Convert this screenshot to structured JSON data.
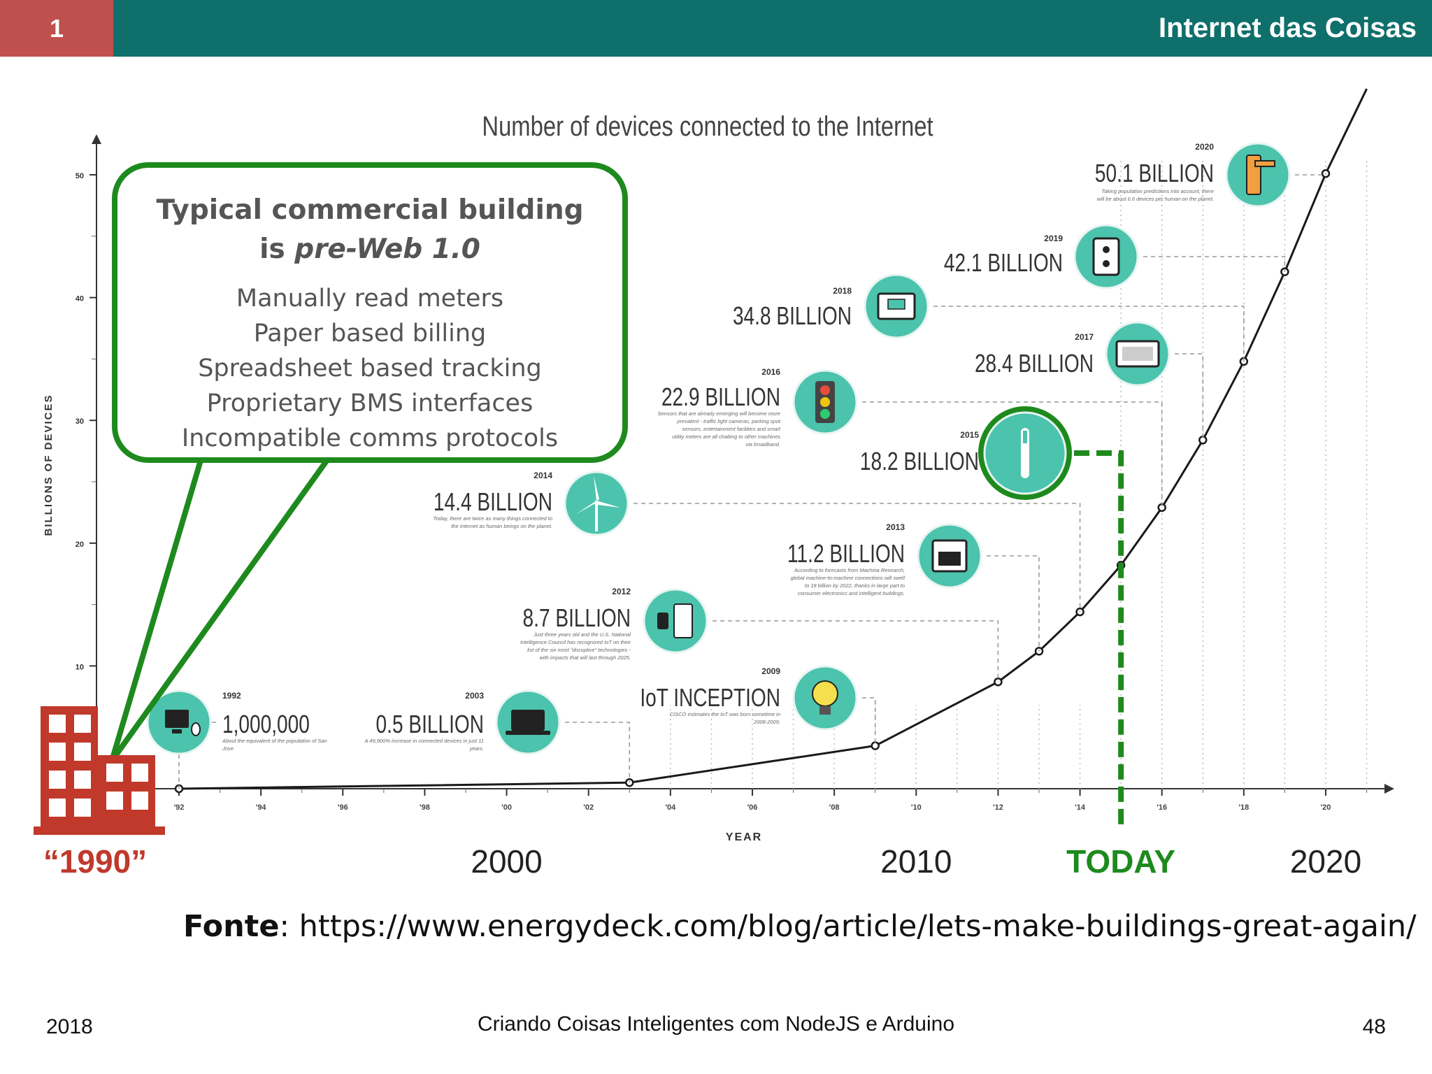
{
  "header": {
    "slide_number": "1",
    "title": "Internet das Coisas"
  },
  "callout": {
    "title": "Typical commercial building",
    "subtitle_prefix": "is ",
    "subtitle_em": "pre-Web 1.0",
    "items": [
      "Manually read meters",
      "Paper based billing",
      "Spreadsheet based tracking",
      "Proprietary BMS interfaces",
      "Incompatible comms protocols"
    ]
  },
  "source": {
    "label": "Fonte",
    "url": "https://www.energydeck.com/blog/article/lets-make-buildings-great-again/"
  },
  "footer": {
    "year": "2018",
    "course": "Criando Coisas Inteligentes com NodeJS e Arduino",
    "page": "48"
  },
  "colors": {
    "teal_bar": "#0f6f6b",
    "red_box": "#c0504d",
    "green": "#1e8a1e",
    "icon_teal": "#4cc3ac",
    "building_red": "#c0392b"
  },
  "chart_data": {
    "type": "line",
    "title": "Number of devices connected to the Internet",
    "xlabel": "YEAR",
    "ylabel": "BILLIONS OF DEVICES",
    "xlim": [
      1991,
      2021
    ],
    "ylim": [
      0,
      52
    ],
    "y_ticks": [
      "10",
      "20",
      "30",
      "40",
      "50"
    ],
    "x_ticks": [
      "'92",
      "'94",
      "'96",
      "'98",
      "'00",
      "'02",
      "'04",
      "'06",
      "'08",
      "'10",
      "'12",
      "'14",
      "'16",
      "'18",
      "'20"
    ],
    "x_tick_values": [
      1992,
      1994,
      1996,
      1998,
      2000,
      2002,
      2004,
      2006,
      2008,
      2010,
      2012,
      2014,
      2016,
      2018,
      2020
    ],
    "points": [
      {
        "x": 1992,
        "y": 0.001
      },
      {
        "x": 2003,
        "y": 0.5
      },
      {
        "x": 2009,
        "y": 3.5
      },
      {
        "x": 2012,
        "y": 8.7
      },
      {
        "x": 2013,
        "y": 11.2
      },
      {
        "x": 2014,
        "y": 14.4
      },
      {
        "x": 2015,
        "y": 18.2
      },
      {
        "x": 2016,
        "y": 22.9
      },
      {
        "x": 2017,
        "y": 28.4
      },
      {
        "x": 2018,
        "y": 34.8
      },
      {
        "x": 2019,
        "y": 42.1
      },
      {
        "x": 2020,
        "y": 50.1
      },
      {
        "x": 2021,
        "y": 57.0
      }
    ],
    "annotations": [
      {
        "year": "1992",
        "value": "1,000,000",
        "icon": "computer-icon",
        "note": "About the equivalent of the population of San Jose."
      },
      {
        "year": "2003",
        "value": "0.5 BILLION",
        "icon": "laptop-icon",
        "note": "A 49,900% increase in connected devices in just 11 years."
      },
      {
        "year": "2009",
        "value": "IoT INCEPTION",
        "icon": "lightbulb-icon",
        "note": "CISCO estimates the IoT was born sometime in 2008-2009."
      },
      {
        "year": "2012",
        "value": "8.7 BILLION",
        "icon": "watch-fridge-icon",
        "note": "Just three years old and the U.S. National Intelligence Council has recognized IoT on their list of the six most \"disruptive\" technologies - with impacts that will last through 2025."
      },
      {
        "year": "2013",
        "value": "11.2 BILLION",
        "icon": "oven-icon",
        "note": "According to forecasts from Machina Research, global machine-to-machine connections will swell to 18 billion by 2022, thanks in large part to consumer electronics and intelligent buildings."
      },
      {
        "year": "2014",
        "value": "14.4 BILLION",
        "icon": "wind-turbine-icon",
        "note": "Today, there are twice as many things connected to the Internet as human beings on the planet."
      },
      {
        "year": "2015",
        "value": "18.2 BILLION",
        "icon": "toothbrush-icon",
        "note": ""
      },
      {
        "year": "2016",
        "value": "22.9 BILLION",
        "icon": "traffic-light-icon",
        "note": "Sensors that are already emerging will become more prevalent - traffic light cameras, parking spot sensors, entertainment facilities and smart utility meters are all chatting to other machines via broadband."
      },
      {
        "year": "2017",
        "value": "28.4 BILLION",
        "icon": "monitor-icon",
        "note": ""
      },
      {
        "year": "2018",
        "value": "34.8 BILLION",
        "icon": "thermostat-icon",
        "note": ""
      },
      {
        "year": "2019",
        "value": "42.1 BILLION",
        "icon": "power-outlet-icon",
        "note": ""
      },
      {
        "year": "2020",
        "value": "50.1 BILLION",
        "icon": "door-handle-icon",
        "note": "Taking population predictions into account, there will be about 6.6 devices per human on the planet."
      }
    ],
    "decade_labels": [
      {
        "x": 1990,
        "text": "“1990”"
      },
      {
        "x": 2000,
        "text": "2000"
      },
      {
        "x": 2010,
        "text": "2010"
      },
      {
        "x": 2015,
        "text": "TODAY"
      },
      {
        "x": 2020,
        "text": "2020"
      }
    ],
    "today_marker": {
      "year": 2015
    }
  }
}
